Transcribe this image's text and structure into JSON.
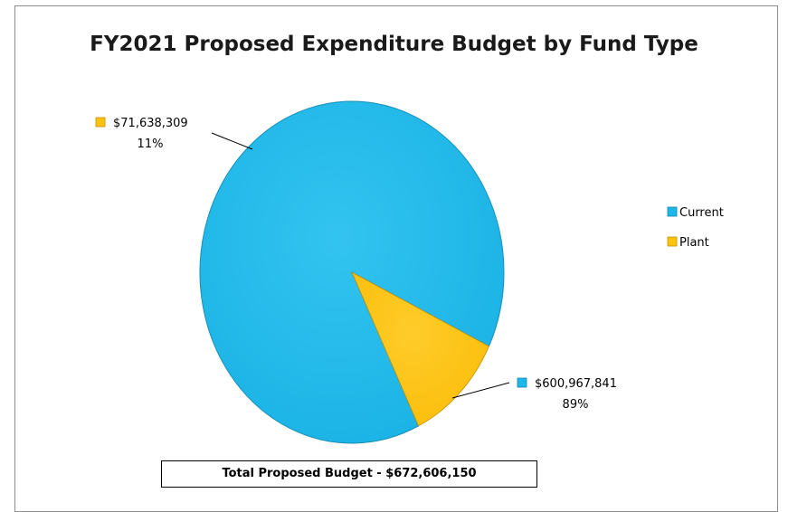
{
  "chart_data": {
    "type": "pie",
    "title": "FY2021 Proposed Expenditure Budget by Fund Type",
    "categories": [
      "Current",
      "Plant"
    ],
    "values": [
      600967841,
      71638309
    ],
    "value_labels": [
      "$600,967,841",
      "$71,638,309"
    ],
    "percent_labels": [
      "89%",
      "11%"
    ],
    "colors": [
      "#1eb8e8",
      "#ffc20e"
    ],
    "legend": {
      "placement": "right",
      "entries": [
        "Current",
        "Plant"
      ]
    },
    "footer": "Total Proposed Budget - $672,606,150"
  }
}
